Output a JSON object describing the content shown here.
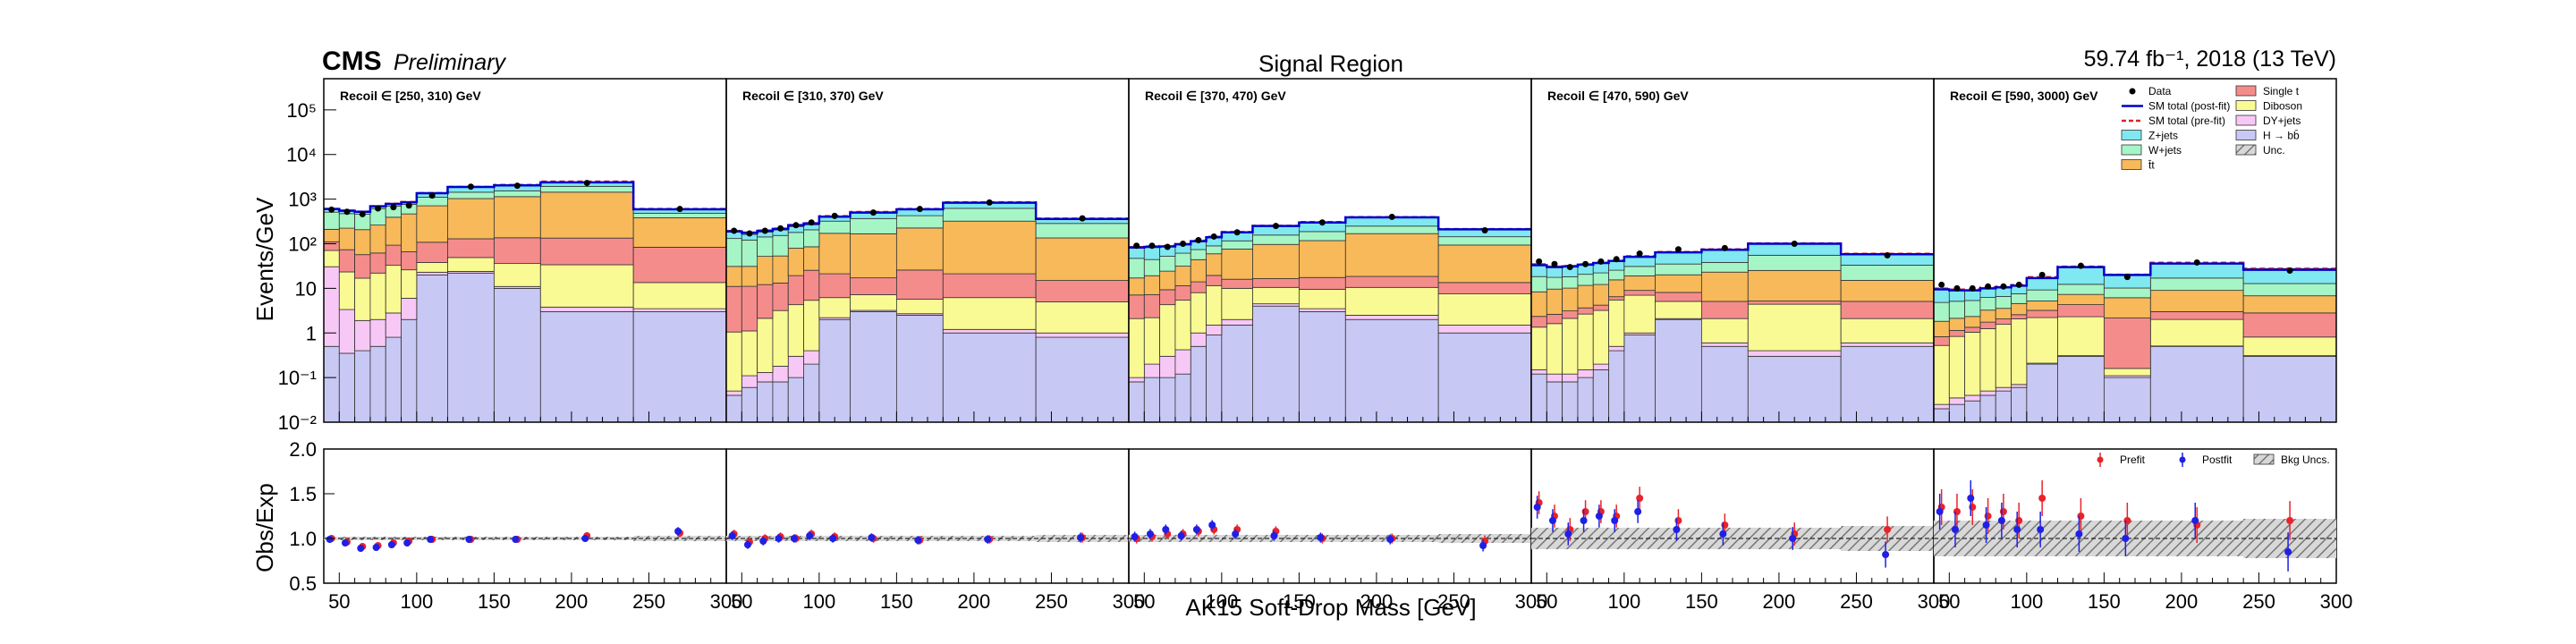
{
  "header": {
    "experiment": "CMS",
    "status": "Preliminary",
    "title": "Signal Region",
    "lumi": "59.74 fb⁻¹, 2018 (13 TeV)"
  },
  "chart_data": {
    "type": "bar",
    "title": "Signal Region",
    "xlabel": "AK15 Soft-Drop Mass [GeV]",
    "ylabel": "Events/GeV",
    "ratio_ylabel": "Obs/Exp",
    "ylim": [
      0.01,
      500000
    ],
    "y_scale": "log",
    "ratio_ylim": [
      0.5,
      2.0
    ],
    "xlim": [
      40,
      300
    ],
    "bins": [
      40,
      50,
      60,
      70,
      80,
      90,
      100,
      120,
      150,
      180,
      240,
      300
    ],
    "x_tick_labels": [
      "50",
      "100",
      "150",
      "200",
      "250",
      "300"
    ],
    "y_tick_labels": [
      "10⁻²",
      "10⁻¹",
      "1",
      "10",
      "10²",
      "10³",
      "10⁴",
      "10⁵"
    ],
    "ratio_tick_labels": [
      "0.5",
      "1.0",
      "1.5",
      "2.0"
    ],
    "legend_main": [
      {
        "label": "Data",
        "kind": "marker",
        "color": "#000000"
      },
      {
        "label": "SM total (post-fit)",
        "kind": "line",
        "color": "#0000cc"
      },
      {
        "label": "SM total (pre-fit)",
        "kind": "dash",
        "color": "#d62728"
      },
      {
        "label": "Z+jets",
        "kind": "fill",
        "color": "#7fe8f0"
      },
      {
        "label": "W+jets",
        "kind": "fill",
        "color": "#a6f5c7"
      },
      {
        "label": "t̄t",
        "kind": "fill",
        "color": "#f7b95a"
      },
      {
        "label": "Single t",
        "kind": "fill",
        "color": "#f58c8c"
      },
      {
        "label": "Diboson",
        "kind": "fill",
        "color": "#fafa94"
      },
      {
        "label": "DY+jets",
        "kind": "fill",
        "color": "#f7c8f5"
      },
      {
        "label": "H → bb̄",
        "kind": "fill",
        "color": "#c8c8f5"
      },
      {
        "label": "Unc.",
        "kind": "hatch",
        "color": "#888888"
      }
    ],
    "legend_ratio": [
      {
        "label": "Prefit",
        "color": "#e8232a"
      },
      {
        "label": "Postfit",
        "color": "#1f1fe6"
      },
      {
        "label": "Bkg Uncs.",
        "color": "#888888"
      }
    ],
    "panels": [
      {
        "label": "Recoil ∈ [250, 310) GeV",
        "stack": {
          "H → bb̄": [
            0.5,
            0.35,
            0.4,
            0.5,
            0.8,
            2.0,
            20,
            22,
            10,
            3,
            3
          ],
          "DY+jets": [
            30,
            3,
            1.5,
            1.5,
            2,
            4,
            3,
            2,
            1,
            0.8,
            0.5
          ],
          "Diboson": [
            40,
            20,
            15,
            20,
            30,
            20,
            15,
            25,
            25,
            30,
            10
          ],
          "Single t": [
            40,
            50,
            40,
            40,
            60,
            40,
            70,
            80,
            100,
            100,
            70
          ],
          "t̄t": [
            100,
            150,
            150,
            200,
            300,
            400,
            600,
            900,
            1000,
            1300,
            300
          ],
          "W+jets": [
            300,
            250,
            250,
            350,
            300,
            300,
            400,
            400,
            400,
            500,
            100
          ],
          "Z+jets": [
            90,
            80,
            60,
            80,
            80,
            80,
            250,
            450,
            500,
            450,
            100
          ]
        },
        "prefit_total": [
          610,
          560,
          530,
          700,
          800,
          870,
          1380,
          1900,
          2100,
          2500,
          610
        ],
        "postfit_total": [
          600,
          550,
          520,
          690,
          780,
          850,
          1360,
          1870,
          2030,
          2380,
          590
        ],
        "data": [
          580,
          520,
          460,
          620,
          660,
          720,
          1200,
          1900,
          2000,
          2300,
          600
        ],
        "ratio_prefit": [
          1.0,
          0.96,
          0.91,
          0.92,
          0.95,
          0.97,
          0.99,
          0.99,
          0.99,
          1.03,
          1.06
        ],
        "ratio_postfit": [
          0.99,
          0.95,
          0.89,
          0.9,
          0.93,
          0.95,
          0.99,
          0.99,
          0.99,
          1.0,
          1.08
        ],
        "unc": [
          0.02,
          0.02,
          0.02,
          0.02,
          0.02,
          0.02,
          0.02,
          0.02,
          0.02,
          0.02,
          0.03
        ]
      },
      {
        "label": "Recoil ∈ [310, 370) GeV",
        "stack": {
          "H → bb̄": [
            0.04,
            0.06,
            0.08,
            0.08,
            0.1,
            0.2,
            2,
            3,
            2.5,
            1,
            0.8
          ],
          "DY+jets": [
            0.01,
            0.05,
            0.05,
            0.1,
            0.2,
            0.2,
            0.2,
            0.2,
            0.2,
            0.2,
            0.2
          ],
          "Diboson": [
            1,
            1,
            2,
            3,
            4,
            5,
            4,
            4,
            3,
            5,
            4
          ],
          "Single t": [
            10,
            10,
            10,
            10,
            15,
            20,
            15,
            10,
            20,
            15,
            10
          ],
          "t̄t": [
            20,
            20,
            40,
            40,
            60,
            60,
            150,
            150,
            200,
            300,
            120
          ],
          "W+jets": [
            100,
            90,
            90,
            100,
            100,
            120,
            150,
            200,
            200,
            300,
            150
          ],
          "Z+jets": [
            50,
            40,
            40,
            50,
            60,
            60,
            80,
            120,
            150,
            200,
            60
          ]
        },
        "prefit_total": [
          195,
          180,
          200,
          220,
          265,
          290,
          420,
          520,
          610,
          860,
          370
        ],
        "postfit_total": [
          190,
          175,
          195,
          215,
          260,
          285,
          405,
          500,
          590,
          830,
          360
        ],
        "data": [
          195,
          170,
          195,
          220,
          260,
          300,
          420,
          500,
          600,
          840,
          370
        ],
        "ratio_prefit": [
          1.05,
          0.96,
          1.0,
          1.02,
          1.0,
          1.05,
          1.02,
          1.0,
          0.98,
          0.99,
          1.01
        ],
        "ratio_postfit": [
          1.03,
          0.93,
          0.97,
          1.0,
          1.0,
          1.03,
          1.0,
          1.01,
          0.98,
          0.99,
          1.01
        ],
        "unc": [
          0.03,
          0.03,
          0.03,
          0.03,
          0.03,
          0.03,
          0.03,
          0.03,
          0.03,
          0.03,
          0.04
        ]
      },
      {
        "label": "Recoil ∈ [370, 470) GeV",
        "stack": {
          "H → bb̄": [
            0.08,
            0.1,
            0.1,
            0.12,
            0.5,
            0.9,
            1.5,
            4,
            3,
            2,
            1
          ],
          "DY+jets": [
            0.02,
            0.1,
            0.2,
            0.3,
            0.5,
            0.6,
            0.5,
            0.5,
            0.5,
            0.5,
            0.5
          ],
          "Diboson": [
            2,
            2,
            4,
            5,
            7,
            10,
            8,
            6,
            6,
            8,
            6
          ],
          "Single t": [
            5,
            5,
            5,
            6,
            6,
            8,
            6,
            6,
            8,
            8,
            6
          ],
          "t̄t": [
            10,
            12,
            15,
            20,
            30,
            40,
            60,
            80,
            100,
            150,
            80
          ],
          "W+jets": [
            30,
            25,
            28,
            30,
            30,
            30,
            40,
            60,
            70,
            80,
            50
          ],
          "Z+jets": [
            35,
            40,
            35,
            40,
            40,
            50,
            70,
            100,
            120,
            150,
            70
          ]
        },
        "prefit_total": [
          85,
          88,
          90,
          100,
          118,
          145,
          185,
          255,
          310,
          400,
          215
        ],
        "postfit_total": [
          82,
          85,
          87,
          97,
          114,
          140,
          180,
          250,
          300,
          390,
          210
        ],
        "data": [
          90,
          90,
          85,
          100,
          120,
          145,
          180,
          250,
          300,
          400,
          200
        ],
        "ratio_prefit": [
          1.0,
          1.02,
          1.05,
          1.05,
          1.08,
          1.1,
          1.1,
          1.08,
          1.0,
          1.0,
          0.97
        ],
        "ratio_postfit": [
          1.02,
          1.05,
          1.1,
          1.03,
          1.1,
          1.15,
          1.05,
          1.03,
          1.01,
          0.99,
          0.92
        ],
        "unc": [
          0.04,
          0.04,
          0.04,
          0.04,
          0.04,
          0.04,
          0.04,
          0.04,
          0.04,
          0.04,
          0.05
        ]
      },
      {
        "label": "Recoil ∈ [470, 590) GeV",
        "stack": {
          "H → bb̄": [
            0.12,
            0.08,
            0.08,
            0.1,
            0.15,
            0.4,
            0.9,
            2,
            0.5,
            0.3,
            0.5
          ],
          "DY+jets": [
            0.03,
            0.04,
            0.04,
            0.05,
            0.05,
            0.1,
            0.1,
            0.1,
            0.1,
            0.1,
            0.1
          ],
          "Diboson": [
            1.2,
            1.5,
            2,
            2.5,
            3,
            5,
            6,
            3,
            1.5,
            4,
            1.5
          ],
          "Single t": [
            1,
            1,
            1,
            1,
            1,
            1,
            2,
            3,
            3,
            0.8,
            3
          ],
          "t̄t": [
            6,
            7,
            7,
            8,
            8,
            9,
            10,
            12,
            18,
            20,
            10
          ],
          "W+jets": [
            10,
            8,
            8,
            9,
            10,
            10,
            12,
            15,
            15,
            30,
            18
          ],
          "Z+jets": [
            15,
            12,
            12,
            13,
            14,
            15,
            20,
            30,
            35,
            45,
            25
          ]
        },
        "prefit_total": [
          35,
          31,
          32,
          35,
          38,
          42,
          53,
          66,
          76,
          103,
          60
        ],
        "postfit_total": [
          33,
          30,
          31,
          34,
          37,
          41,
          51,
          64,
          73,
          100,
          58
        ],
        "data": [
          40,
          35,
          30,
          35,
          40,
          45,
          60,
          75,
          80,
          100,
          55
        ],
        "ratio_prefit": [
          1.4,
          1.25,
          1.1,
          1.3,
          1.3,
          1.25,
          1.45,
          1.2,
          1.15,
          1.05,
          1.1
        ],
        "ratio_postfit": [
          1.35,
          1.2,
          1.05,
          1.2,
          1.25,
          1.2,
          1.3,
          1.1,
          1.05,
          1.0,
          0.82
        ],
        "unc": [
          0.12,
          0.12,
          0.12,
          0.12,
          0.12,
          0.12,
          0.12,
          0.12,
          0.12,
          0.12,
          0.14
        ]
      },
      {
        "label": "Recoil ∈ [590, 3000) GeV",
        "stack": {
          "H → bb̄": [
            0.02,
            0.025,
            0.03,
            0.04,
            0.05,
            0.06,
            0.2,
            0.3,
            0.1,
            0.5,
            0.3
          ],
          "DY+jets": [
            0.005,
            0.01,
            0.01,
            0.01,
            0.01,
            0.01,
            0.01,
            0.01,
            0.01,
            0.01,
            0.01
          ],
          "Diboson": [
            0.5,
            0.8,
            1,
            1.2,
            1.5,
            2,
            2,
            2,
            0.05,
            1.5,
            0.5
          ],
          "Single t": [
            0.3,
            0.3,
            0.3,
            0.5,
            0.5,
            0.5,
            1,
            2,
            2,
            1,
            2
          ],
          "t̄t": [
            1,
            1,
            1,
            1.5,
            1.5,
            2,
            2,
            3,
            4,
            6,
            4
          ],
          "W+jets": [
            3,
            3,
            3,
            3,
            3,
            3,
            4,
            5,
            4,
            8,
            6
          ],
          "Z+jets": [
            5,
            4,
            4,
            4,
            4,
            4,
            8,
            18,
            10,
            20,
            15
          ]
        },
        "prefit_total": [
          10,
          9.5,
          9.5,
          10.5,
          11,
          12,
          18,
          31,
          20.5,
          38,
          28
        ],
        "postfit_total": [
          9.5,
          9,
          9,
          10,
          10.5,
          11.5,
          17,
          30,
          20,
          36,
          26
        ],
        "data": [
          12,
          10,
          10,
          11,
          11,
          12,
          20,
          32,
          18,
          38,
          25
        ],
        "ratio_prefit": [
          1.35,
          1.3,
          1.35,
          1.25,
          1.3,
          1.2,
          1.45,
          1.25,
          1.2,
          1.15,
          1.2
        ],
        "ratio_postfit": [
          1.3,
          1.1,
          1.45,
          1.15,
          1.2,
          1.1,
          1.1,
          1.05,
          1.0,
          1.2,
          0.85
        ],
        "unc": [
          0.2,
          0.2,
          0.2,
          0.2,
          0.2,
          0.2,
          0.2,
          0.2,
          0.2,
          0.2,
          0.22
        ]
      }
    ]
  }
}
